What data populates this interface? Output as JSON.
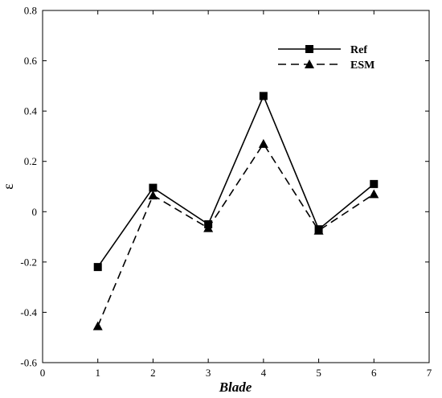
{
  "chart_data": {
    "type": "line",
    "title": "",
    "xlabel": "Blade",
    "ylabel": "ε",
    "xlim": [
      0,
      7
    ],
    "ylim": [
      -0.6,
      0.8
    ],
    "xticks": [
      0,
      1,
      2,
      3,
      4,
      5,
      6,
      7
    ],
    "yticks": [
      -0.6,
      -0.4,
      -0.2,
      0,
      0.2,
      0.4,
      0.6,
      0.8
    ],
    "x_tick_labels": [
      "0",
      "1",
      "2",
      "3",
      "4",
      "5",
      "6",
      "7"
    ],
    "y_tick_labels": [
      "-0.6",
      "-0.4",
      "-0.2",
      "0",
      "0.2",
      "0.4",
      "0.6",
      "0.8"
    ],
    "grid": false,
    "legend_position": "top-right",
    "x": [
      1,
      2,
      3,
      4,
      5,
      6
    ],
    "series": [
      {
        "name": "Ref",
        "values": [
          -0.22,
          0.095,
          -0.05,
          0.46,
          -0.07,
          0.11
        ],
        "marker": "square",
        "line_style": "solid",
        "color": "#000000"
      },
      {
        "name": "ESM",
        "values": [
          -0.455,
          0.065,
          -0.065,
          0.27,
          -0.075,
          0.07
        ],
        "marker": "triangle",
        "line_style": "dashed",
        "color": "#000000"
      }
    ]
  }
}
